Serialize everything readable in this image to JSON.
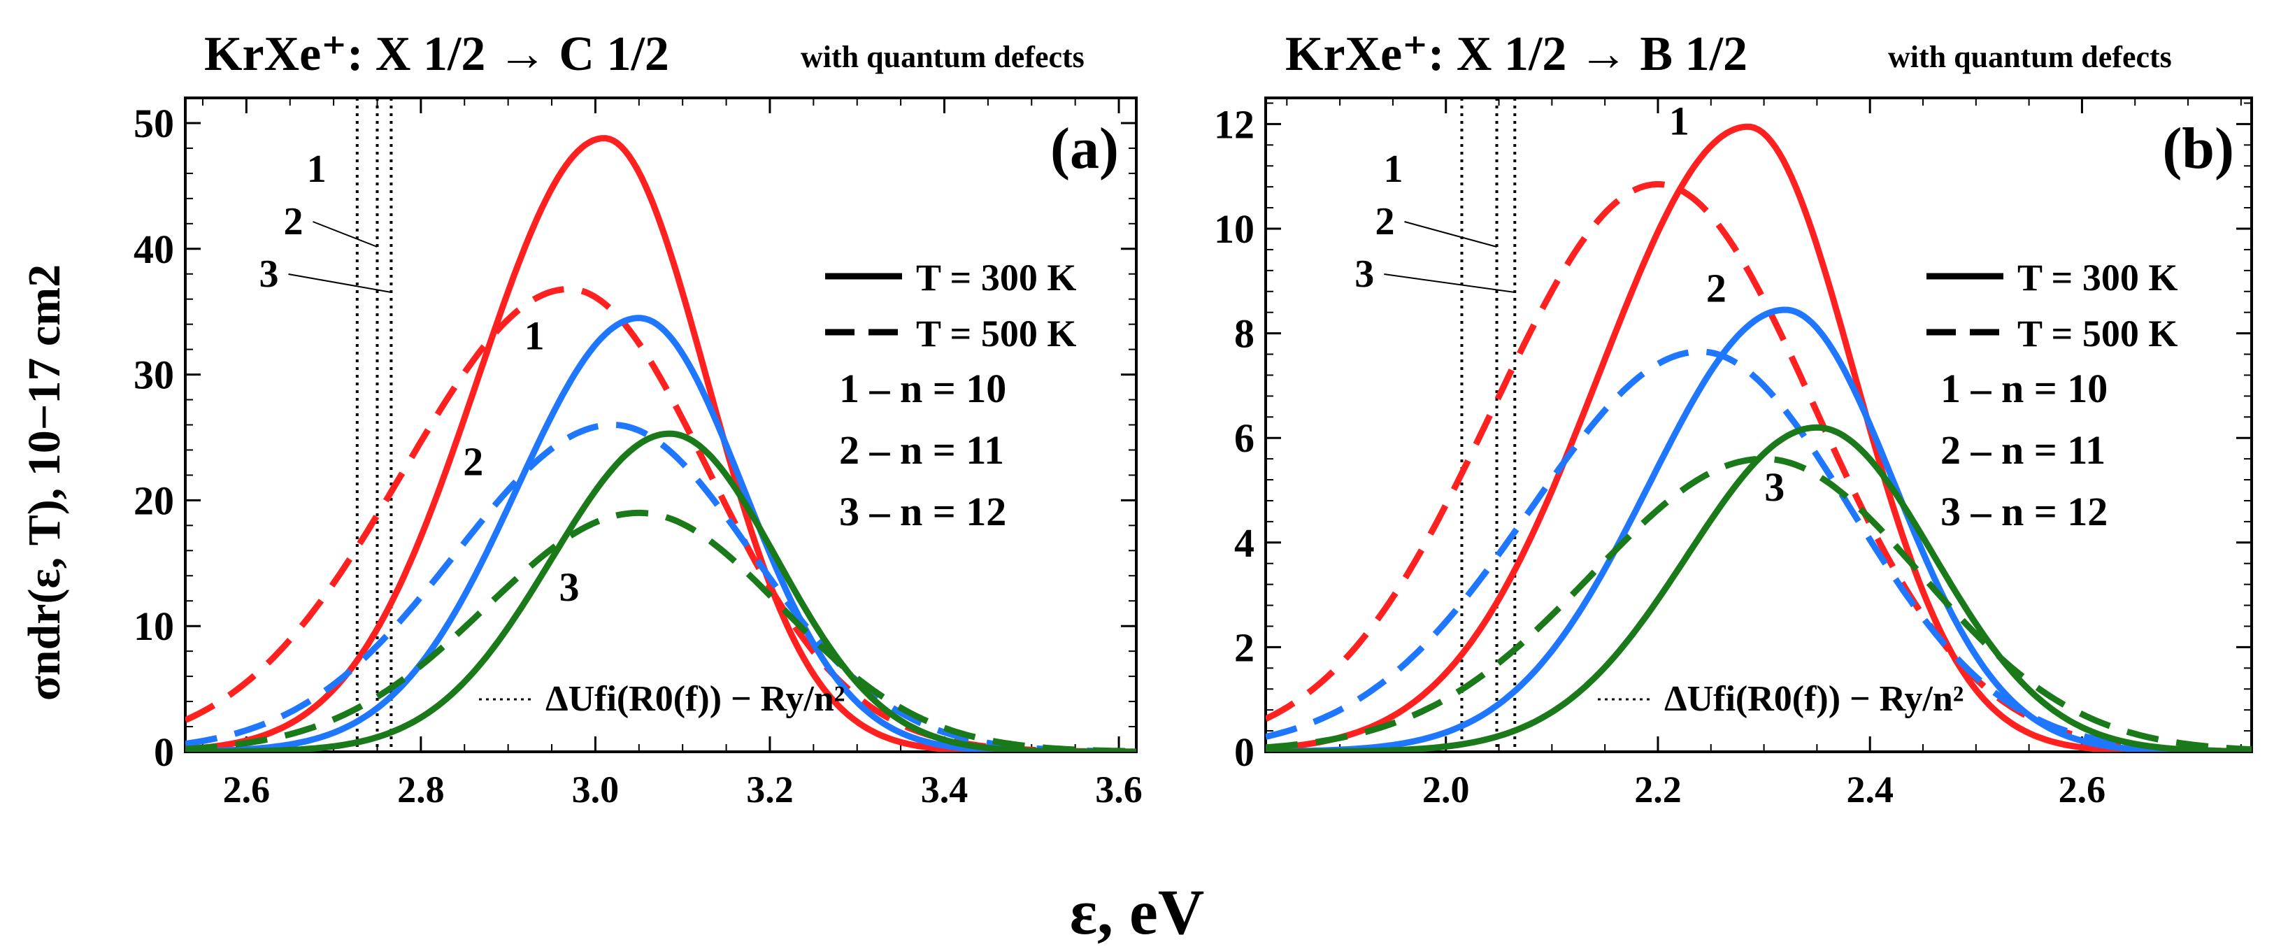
{
  "figure": {
    "xlabel": "ε, eV",
    "ylabel": "σndr(ε, T), 10−17 cm2"
  },
  "colors": {
    "n10": "#ff2020",
    "n11": "#1f77ff",
    "n12": "#1a7a1a",
    "threshold": "#000000"
  },
  "chart_data": [
    {
      "id": "a",
      "type": "line",
      "title": "KrXe⁺: X 1/2 → C 1/2",
      "title_note": "with quantum defects",
      "panel_label": "(a)",
      "xlabel": "ε, eV",
      "ylabel": "σndr(ε, T), 10−17 cm2",
      "xlim": [
        2.53,
        3.62
      ],
      "ylim": [
        0,
        52
      ],
      "xticks": [
        "2.6",
        "2.8",
        "3.0",
        "3.2",
        "3.4",
        "3.6"
      ],
      "xtick_values": [
        2.6,
        2.8,
        3.0,
        3.2,
        3.4,
        3.6
      ],
      "yticks": [
        "0",
        "10",
        "20",
        "30",
        "40",
        "50"
      ],
      "ytick_values": [
        0,
        10,
        20,
        30,
        40,
        50
      ],
      "legend": {
        "position": "right",
        "solid": "T = 300 K",
        "dashed": "T = 500 K",
        "n_entries": [
          "1 – n = 10",
          "2 – n = 11",
          "3 – n = 12"
        ]
      },
      "threshold_label": "ΔUfi(R0(f)) − Ry/n²",
      "thresholds": [
        {
          "label": "1",
          "x": 2.727
        },
        {
          "label": "2",
          "x": 2.75
        },
        {
          "label": "3",
          "x": 2.766
        }
      ],
      "curve_labels": [
        {
          "text": "1",
          "x": 2.93,
          "y": 32
        },
        {
          "text": "2",
          "x": 2.86,
          "y": 22
        },
        {
          "text": "3",
          "x": 2.97,
          "y": 12
        }
      ],
      "series": [
        {
          "name": "1",
          "n": 10,
          "T": 300,
          "style": "solid",
          "color_key": "n10",
          "peak_x": 3.01,
          "peak_y": 48.8,
          "sigma_left": 0.145,
          "sigma_right": 0.118
        },
        {
          "name": "1",
          "n": 10,
          "T": 500,
          "style": "dashed",
          "color_key": "n10",
          "peak_x": 2.97,
          "peak_y": 36.8,
          "sigma_left": 0.19,
          "sigma_right": 0.16
        },
        {
          "name": "2",
          "n": 11,
          "T": 300,
          "style": "solid",
          "color_key": "n11",
          "peak_x": 3.05,
          "peak_y": 34.5,
          "sigma_left": 0.14,
          "sigma_right": 0.12
        },
        {
          "name": "2",
          "n": 11,
          "T": 500,
          "style": "dashed",
          "color_key": "n11",
          "peak_x": 3.02,
          "peak_y": 26.0,
          "sigma_left": 0.18,
          "sigma_right": 0.16
        },
        {
          "name": "3",
          "n": 12,
          "T": 300,
          "style": "solid",
          "color_key": "n12",
          "peak_x": 3.085,
          "peak_y": 25.3,
          "sigma_left": 0.135,
          "sigma_right": 0.123
        },
        {
          "name": "3",
          "n": 12,
          "T": 500,
          "style": "dashed",
          "color_key": "n12",
          "peak_x": 3.05,
          "peak_y": 19.0,
          "sigma_left": 0.175,
          "sigma_right": 0.163
        }
      ]
    },
    {
      "id": "b",
      "type": "line",
      "title": "KrXe⁺: X 1/2 → B 1/2",
      "title_note": "with quantum defects",
      "panel_label": "(b)",
      "xlabel": "ε, eV",
      "ylabel": "σndr(ε, T), 10−17 cm2",
      "xlim": [
        1.83,
        2.76
      ],
      "ylim": [
        0,
        12.5
      ],
      "xticks": [
        "2.0",
        "2.2",
        "2.4",
        "2.6"
      ],
      "xtick_values": [
        2.0,
        2.2,
        2.4,
        2.6
      ],
      "yticks": [
        "0",
        "2",
        "4",
        "6",
        "8",
        "10",
        "12"
      ],
      "ytick_values": [
        0,
        2,
        4,
        6,
        8,
        10,
        12
      ],
      "legend": {
        "position": "right",
        "solid": "T = 300 K",
        "dashed": "T = 500 K",
        "n_entries": [
          "1 – n = 10",
          "2 – n = 11",
          "3 – n = 12"
        ]
      },
      "threshold_label": "ΔUfi(R0(f)) − Ry/n²",
      "thresholds": [
        {
          "label": "1",
          "x": 2.015
        },
        {
          "label": "2",
          "x": 2.048
        },
        {
          "label": "3",
          "x": 2.065
        }
      ],
      "curve_labels": [
        {
          "text": "1",
          "x": 2.22,
          "y": 11.8
        },
        {
          "text": "2",
          "x": 2.255,
          "y": 8.6
        },
        {
          "text": "3",
          "x": 2.31,
          "y": 4.8
        }
      ],
      "series": [
        {
          "name": "1",
          "n": 10,
          "T": 300,
          "style": "solid",
          "color_key": "n10",
          "peak_x": 2.285,
          "peak_y": 11.95,
          "sigma_left": 0.14,
          "sigma_right": 0.1
        },
        {
          "name": "1",
          "n": 10,
          "T": 500,
          "style": "dashed",
          "color_key": "n10",
          "peak_x": 2.2,
          "peak_y": 10.85,
          "sigma_left": 0.155,
          "sigma_right": 0.148
        },
        {
          "name": "2",
          "n": 11,
          "T": 300,
          "style": "solid",
          "color_key": "n11",
          "peak_x": 2.32,
          "peak_y": 8.45,
          "sigma_left": 0.128,
          "sigma_right": 0.103
        },
        {
          "name": "2",
          "n": 11,
          "T": 500,
          "style": "dashed",
          "color_key": "n11",
          "peak_x": 2.24,
          "peak_y": 7.65,
          "sigma_left": 0.16,
          "sigma_right": 0.142
        },
        {
          "name": "3",
          "n": 12,
          "T": 300,
          "style": "solid",
          "color_key": "n12",
          "peak_x": 2.35,
          "peak_y": 6.2,
          "sigma_left": 0.122,
          "sigma_right": 0.11
        },
        {
          "name": "3",
          "n": 12,
          "T": 500,
          "style": "dashed",
          "color_key": "n12",
          "peak_x": 2.3,
          "peak_y": 5.6,
          "sigma_left": 0.162,
          "sigma_right": 0.148
        }
      ]
    }
  ]
}
